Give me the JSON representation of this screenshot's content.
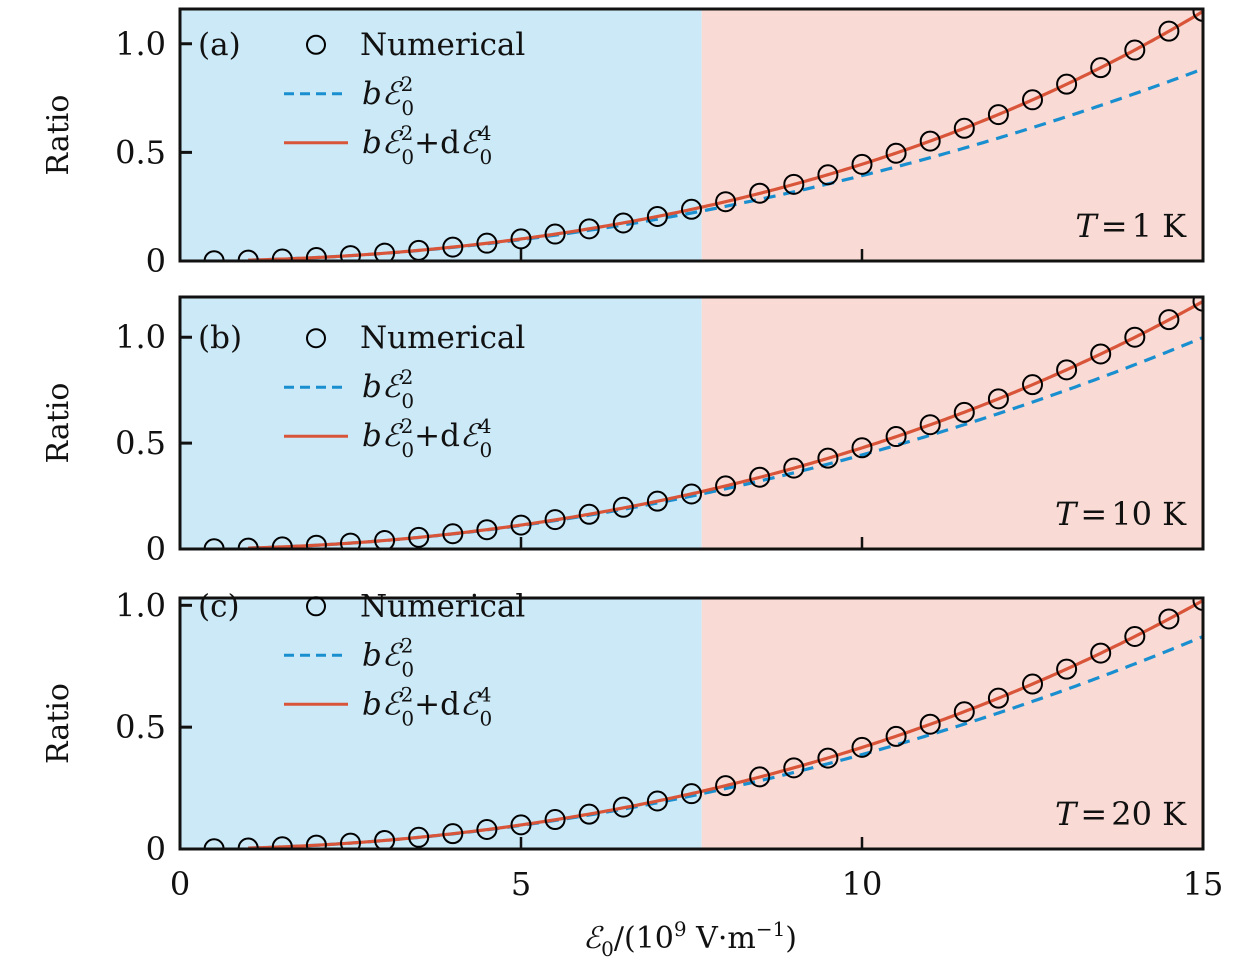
{
  "chart_data": [
    {
      "type": "line",
      "panel_label": "(a)",
      "annotation": {
        "symbol": "T",
        "eq": "=",
        "value": "1 K"
      },
      "ylabel": "Ratio",
      "xlabel": "ℰ0/(10^9 V·m^-1)",
      "xlim": [
        0,
        15
      ],
      "ylim": [
        0,
        1.16
      ],
      "xticks": [
        0,
        5,
        10,
        15
      ],
      "yticks": [
        0,
        0.5,
        1.0
      ],
      "ytick_labels": [
        "0",
        "0.5",
        "1.0"
      ],
      "regions": [
        {
          "name": "low-field",
          "from": 0,
          "to": 7.65,
          "color": "#CBE9F7"
        },
        {
          "name": "high-field",
          "from": 7.65,
          "to": 15,
          "color": "#F9DAD4"
        }
      ],
      "legend_position": "top-left",
      "x": [
        0.5,
        1,
        1.5,
        2,
        2.5,
        3,
        3.5,
        4,
        4.5,
        5,
        5.5,
        6,
        6.5,
        7,
        7.5,
        8,
        8.5,
        9,
        9.5,
        10,
        10.5,
        11,
        11.5,
        12,
        12.5,
        13,
        13.5,
        14,
        14.5,
        15
      ],
      "series": [
        {
          "name": "Numerical",
          "style": "circle",
          "color": "#000000",
          "values": [
            0.001,
            0.004,
            0.009,
            0.016,
            0.025,
            0.036,
            0.049,
            0.064,
            0.082,
            0.102,
            0.124,
            0.148,
            0.175,
            0.205,
            0.238,
            0.273,
            0.312,
            0.353,
            0.397,
            0.445,
            0.496,
            0.552,
            0.611,
            0.674,
            0.742,
            0.814,
            0.89,
            0.971,
            1.058,
            1.149
          ]
        },
        {
          "name": "bℰ0^2",
          "style": "dashed",
          "color": "#1A8FD0",
          "coef_b": 0.00393,
          "coef_d": 0,
          "x_from": 1,
          "x_to": 15
        },
        {
          "name": "bℰ0^2+dℰ0^4",
          "style": "solid",
          "color": "#D9553A",
          "coef_b": 0.00393,
          "coef_d": 5.23e-06,
          "x_from": 1,
          "x_to": 15
        }
      ]
    },
    {
      "type": "line",
      "panel_label": "(b)",
      "annotation": {
        "symbol": "T",
        "eq": "=",
        "value": "10 K"
      },
      "ylabel": "Ratio",
      "xlabel": "ℰ0/(10^9 V·m^-1)",
      "xlim": [
        0,
        15
      ],
      "ylim": [
        0,
        1.19
      ],
      "xticks": [
        0,
        5,
        10,
        15
      ],
      "yticks": [
        0,
        0.5,
        1.0
      ],
      "ytick_labels": [
        "0",
        "0.5",
        "1.0"
      ],
      "regions": [
        {
          "name": "low-field",
          "from": 0,
          "to": 7.65,
          "color": "#CBE9F7"
        },
        {
          "name": "high-field",
          "from": 7.65,
          "to": 15,
          "color": "#F9DAD4"
        }
      ],
      "legend_position": "top-left",
      "x": [
        0.5,
        1,
        1.5,
        2,
        2.5,
        3,
        3.5,
        4,
        4.5,
        5,
        5.5,
        6,
        6.5,
        7,
        7.5,
        8,
        8.5,
        9,
        9.5,
        10,
        10.5,
        11,
        11.5,
        12,
        12.5,
        13,
        13.5,
        14,
        14.5,
        15
      ],
      "series": [
        {
          "name": "Numerical",
          "style": "circle",
          "color": "#000000",
          "values": [
            0.001,
            0.004,
            0.01,
            0.018,
            0.028,
            0.04,
            0.055,
            0.072,
            0.091,
            0.113,
            0.139,
            0.164,
            0.197,
            0.226,
            0.26,
            0.298,
            0.339,
            0.382,
            0.429,
            0.478,
            0.531,
            0.587,
            0.645,
            0.709,
            0.776,
            0.846,
            0.921,
            1.0,
            1.083,
            1.17
          ]
        },
        {
          "name": "bℰ0^2",
          "style": "dashed",
          "color": "#1A8FD0",
          "coef_b": 0.00444,
          "coef_d": 0,
          "x_from": 1,
          "x_to": 15
        },
        {
          "name": "bℰ0^2+dℰ0^4",
          "style": "solid",
          "color": "#D9553A",
          "coef_b": 0.00444,
          "coef_d": 3.36e-06,
          "x_from": 1,
          "x_to": 15
        }
      ]
    },
    {
      "type": "line",
      "panel_label": "(c)",
      "annotation": {
        "symbol": "T",
        "eq": "=",
        "value": "20 K"
      },
      "ylabel": "Ratio",
      "xlabel": "ℰ0/(10^9 V·m^-1)",
      "xlim": [
        0,
        15
      ],
      "ylim": [
        0,
        1.03
      ],
      "xticks": [
        0,
        5,
        10,
        15
      ],
      "yticks": [
        0,
        0.5,
        1.0
      ],
      "ytick_labels": [
        "0",
        "0.5",
        "1.0"
      ],
      "regions": [
        {
          "name": "low-field",
          "from": 0,
          "to": 7.65,
          "color": "#CBE9F7"
        },
        {
          "name": "high-field",
          "from": 7.65,
          "to": 15,
          "color": "#F9DAD4"
        }
      ],
      "legend_position": "top-left",
      "x": [
        0.5,
        1,
        1.5,
        2,
        2.5,
        3,
        3.5,
        4,
        4.5,
        5,
        5.5,
        6,
        6.5,
        7,
        7.5,
        8,
        8.5,
        9,
        9.5,
        10,
        10.5,
        11,
        11.5,
        12,
        12.5,
        13,
        13.5,
        14,
        14.5,
        15
      ],
      "series": [
        {
          "name": "Numerical",
          "style": "circle",
          "color": "#000000",
          "values": [
            0.001,
            0.004,
            0.009,
            0.016,
            0.024,
            0.035,
            0.048,
            0.063,
            0.08,
            0.099,
            0.121,
            0.143,
            0.172,
            0.197,
            0.227,
            0.26,
            0.296,
            0.333,
            0.373,
            0.417,
            0.462,
            0.512,
            0.563,
            0.619,
            0.677,
            0.738,
            0.804,
            0.872,
            0.944,
            1.02
          ]
        },
        {
          "name": "bℰ0^2",
          "style": "dashed",
          "color": "#1A8FD0",
          "coef_b": 0.003876,
          "coef_d": 0,
          "x_from": 1,
          "x_to": 15
        },
        {
          "name": "bℰ0^2+dℰ0^4",
          "style": "solid",
          "color": "#D9553A",
          "coef_b": 0.003876,
          "coef_d": 2.92e-06,
          "x_from": 1,
          "x_to": 15
        }
      ]
    }
  ],
  "axis_text": {
    "ylabel": "Ratio",
    "xtick_labels": [
      "0",
      "5",
      "10",
      "15"
    ],
    "xlabel_parts": {
      "sym": "ℰ",
      "sub": "0",
      "pre": "/(10",
      "sup": "9",
      "unit": " V·m",
      "sup2": "−1",
      "post": ")"
    }
  },
  "legend": {
    "numerical": "Numerical",
    "quad": {
      "b": "b",
      "E": "ℰ",
      "sup": "2",
      "sub": "0"
    },
    "quart": {
      "b": "b",
      "E": "ℰ",
      "sup": "2",
      "sub": "0",
      "plus": "+",
      "d": "d",
      "E2": "ℰ",
      "sup2": "4",
      "sub2": "0"
    }
  }
}
